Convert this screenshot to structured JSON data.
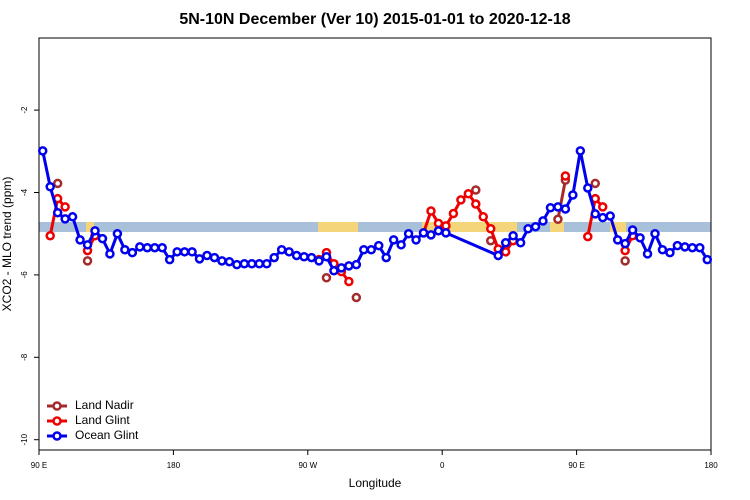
{
  "chart_data": {
    "type": "line",
    "title": "5N-10N December (Ver 10)   2015-01-01 to 2020-12-18",
    "xlabel": "Longitude",
    "ylabel": "XCO2 - MLO trend (ppm)",
    "xlim": [
      90,
      540
    ],
    "ylim": [
      -10.25,
      -0.25
    ],
    "xticks": [
      {
        "value": 90,
        "label": "90 E"
      },
      180,
      {
        "value": 270,
        "label": "90 W"
      },
      {
        "value": 360,
        "label": "0"
      },
      {
        "value": 450,
        "label": "90 E"
      },
      {
        "value": 540,
        "label": "180"
      }
    ],
    "yticks": [
      -2,
      -4,
      -6,
      -8,
      -10
    ],
    "legend": "bottom-left",
    "series": [
      {
        "name": "Land Nadir",
        "color": "#a52a2a",
        "x": [
          102.5,
          112.5,
          122.5,
          132.5,
          282.5,
          292.5,
          302.5,
          372.5,
          382.5,
          387.5,
          392.5,
          432.5,
          437.5,
          442.5,
          452.5,
          462.5,
          472.5,
          482.5
        ],
        "values": [
          -3.78,
          null,
          -5.66,
          null,
          -6.07,
          null,
          -6.55,
          null,
          -3.94,
          null,
          -5.17,
          null,
          -4.65,
          -3.7,
          null,
          -3.78,
          null,
          -5.66
        ]
      },
      {
        "name": "Land Glint",
        "color": "#ee0000",
        "x": [
          97.5,
          102.5,
          107.5,
          112.5,
          122.5,
          127.5,
          272.5,
          277.5,
          282.5,
          287.5,
          292.5,
          297.5,
          337.5,
          347.5,
          352.5,
          357.5,
          362.5,
          367.5,
          372.5,
          377.5,
          382.5,
          387.5,
          392.5,
          397.5,
          402.5,
          407.5,
          432.5,
          442.5,
          447.5,
          457.5,
          462.5,
          467.5,
          472.5,
          482.5,
          487.5
        ],
        "values": [
          -5.05,
          -4.15,
          -4.35,
          null,
          -5.41,
          -5.05,
          null,
          -5.63,
          -5.46,
          -5.73,
          -5.92,
          -6.16,
          null,
          -4.98,
          -4.45,
          -4.75,
          -4.81,
          -4.51,
          -4.18,
          -4.03,
          -4.28,
          -4.59,
          -4.88,
          -5.37,
          -5.44,
          -5.17,
          null,
          -3.6,
          null,
          -5.07,
          -4.15,
          -4.35,
          null,
          -5.41,
          -5.05
        ]
      },
      {
        "name": "Ocean Glint",
        "color": "#0000ee",
        "x": [
          92.5,
          97.5,
          102.5,
          107.5,
          112.5,
          117.5,
          122.5,
          127.5,
          132.5,
          137.5,
          142.5,
          147.5,
          152.5,
          157.5,
          162.5,
          167.5,
          172.5,
          177.5,
          182.5,
          187.5,
          192.5,
          197.5,
          202.5,
          207.5,
          212.5,
          217.5,
          222.5,
          227.5,
          232.5,
          237.5,
          242.5,
          247.5,
          252.5,
          257.5,
          262.5,
          267.5,
          272.5,
          277.5,
          282.5,
          287.5,
          292.5,
          297.5,
          302.5,
          307.5,
          312.5,
          317.5,
          322.5,
          327.5,
          332.5,
          337.5,
          342.5,
          347.5,
          352.5,
          357.5,
          362.5,
          397.5,
          402.5,
          407.5,
          412.5,
          417.5,
          422.5,
          427.5,
          432.5,
          437.5,
          442.5,
          447.5,
          452.5,
          457.5,
          462.5,
          467.5,
          472.5,
          477.5,
          482.5,
          487.5,
          492.5,
          497.5,
          502.5,
          507.5,
          512.5,
          517.5,
          522.5,
          527.5,
          532.5,
          537.5
        ],
        "values": [
          -2.99,
          -3.86,
          -4.49,
          -4.64,
          -4.59,
          -5.15,
          -5.27,
          -4.93,
          -5.12,
          -5.49,
          -5.0,
          -5.39,
          -5.46,
          -5.32,
          -5.34,
          -5.34,
          -5.34,
          -5.63,
          -5.44,
          -5.44,
          -5.44,
          -5.61,
          -5.53,
          -5.58,
          -5.66,
          -5.68,
          -5.75,
          -5.73,
          -5.73,
          -5.73,
          -5.73,
          -5.58,
          -5.39,
          -5.44,
          -5.53,
          -5.56,
          -5.58,
          -5.66,
          -5.56,
          -5.9,
          -5.83,
          -5.78,
          -5.75,
          -5.39,
          -5.39,
          -5.29,
          -5.58,
          -5.15,
          -5.27,
          -5.0,
          -5.15,
          -4.98,
          -5.03,
          -4.93,
          -4.98,
          -5.53,
          -5.22,
          -5.05,
          -5.22,
          -4.88,
          -4.83,
          -4.69,
          -4.37,
          -4.35,
          -4.4,
          -4.06,
          -2.99,
          -3.89,
          -4.52,
          -4.61,
          -4.57,
          -5.15,
          -5.24,
          -4.91,
          -5.1,
          -5.49,
          -5.0,
          -5.39,
          -5.46,
          -5.29,
          -5.32,
          -5.34,
          -5.34,
          -5.63
        ]
      }
    ]
  }
}
